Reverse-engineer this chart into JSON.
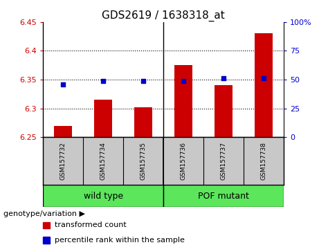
{
  "title": "GDS2619 / 1638318_at",
  "samples": [
    "GSM157732",
    "GSM157734",
    "GSM157735",
    "GSM157736",
    "GSM157737",
    "GSM157738"
  ],
  "red_values": [
    6.27,
    6.315,
    6.302,
    6.375,
    6.34,
    6.43
  ],
  "blue_values": [
    6.342,
    6.348,
    6.348,
    6.348,
    6.352,
    6.352
  ],
  "ylim_left": [
    6.25,
    6.45
  ],
  "yticks_left": [
    6.25,
    6.3,
    6.35,
    6.4,
    6.45
  ],
  "ylim_right": [
    0,
    100
  ],
  "yticks_right": [
    0,
    25,
    50,
    75,
    100
  ],
  "yticklabels_right": [
    "0",
    "25",
    "50",
    "75",
    "100%"
  ],
  "red_color": "#cc0000",
  "blue_color": "#0000cc",
  "bar_width": 0.45,
  "group_labels": [
    "wild type",
    "POF mutant"
  ],
  "group_green": "#5ce65c",
  "gray_bg": "#c8c8c8",
  "legend_red_label": "transformed count",
  "legend_blue_label": "percentile rank within the sample",
  "genotype_label": "genotype/variation",
  "title_fontsize": 11,
  "tick_fontsize": 8,
  "sample_fontsize": 6.5,
  "legend_fontsize": 8,
  "group_fontsize": 9
}
